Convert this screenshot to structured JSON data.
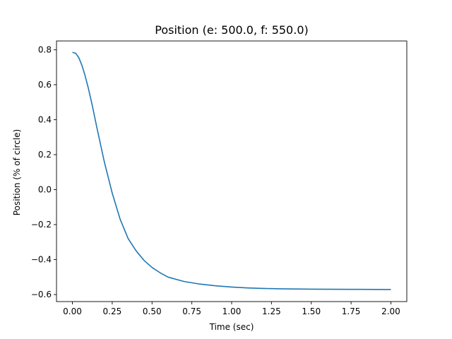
{
  "chart_data": {
    "type": "line",
    "title": "Position (e: 500.0, f: 550.0)",
    "xlabel": "Time (sec)",
    "ylabel": "Position (% of circle)",
    "xlim": [
      -0.1,
      2.1
    ],
    "ylim": [
      -0.64,
      0.85
    ],
    "x_ticks": [
      0.0,
      0.25,
      0.5,
      0.75,
      1.0,
      1.25,
      1.5,
      1.75,
      2.0
    ],
    "x_tick_labels": [
      "0.00",
      "0.25",
      "0.50",
      "0.75",
      "1.00",
      "1.25",
      "1.50",
      "1.75",
      "2.00"
    ],
    "y_ticks": [
      -0.6,
      -0.4,
      -0.2,
      0.0,
      0.2,
      0.4,
      0.6,
      0.8
    ],
    "y_tick_labels": [
      "−0.6",
      "−0.4",
      "−0.2",
      "0.0",
      "0.2",
      "0.4",
      "0.6",
      "0.8"
    ],
    "grid": false,
    "series": [
      {
        "color": "#1f77b4",
        "x": [
          0.0,
          0.02,
          0.04,
          0.06,
          0.08,
          0.1,
          0.125,
          0.15,
          0.2,
          0.25,
          0.3,
          0.35,
          0.4,
          0.45,
          0.5,
          0.55,
          0.6,
          0.7,
          0.8,
          0.9,
          1.0,
          1.1,
          1.2,
          1.3,
          1.4,
          1.5,
          1.75,
          2.0
        ],
        "y": [
          0.785,
          0.78,
          0.755,
          0.71,
          0.65,
          0.58,
          0.48,
          0.37,
          0.16,
          -0.02,
          -0.17,
          -0.28,
          -0.35,
          -0.405,
          -0.445,
          -0.475,
          -0.5,
          -0.525,
          -0.54,
          -0.55,
          -0.557,
          -0.562,
          -0.565,
          -0.567,
          -0.568,
          -0.569,
          -0.57,
          -0.571
        ]
      }
    ]
  }
}
